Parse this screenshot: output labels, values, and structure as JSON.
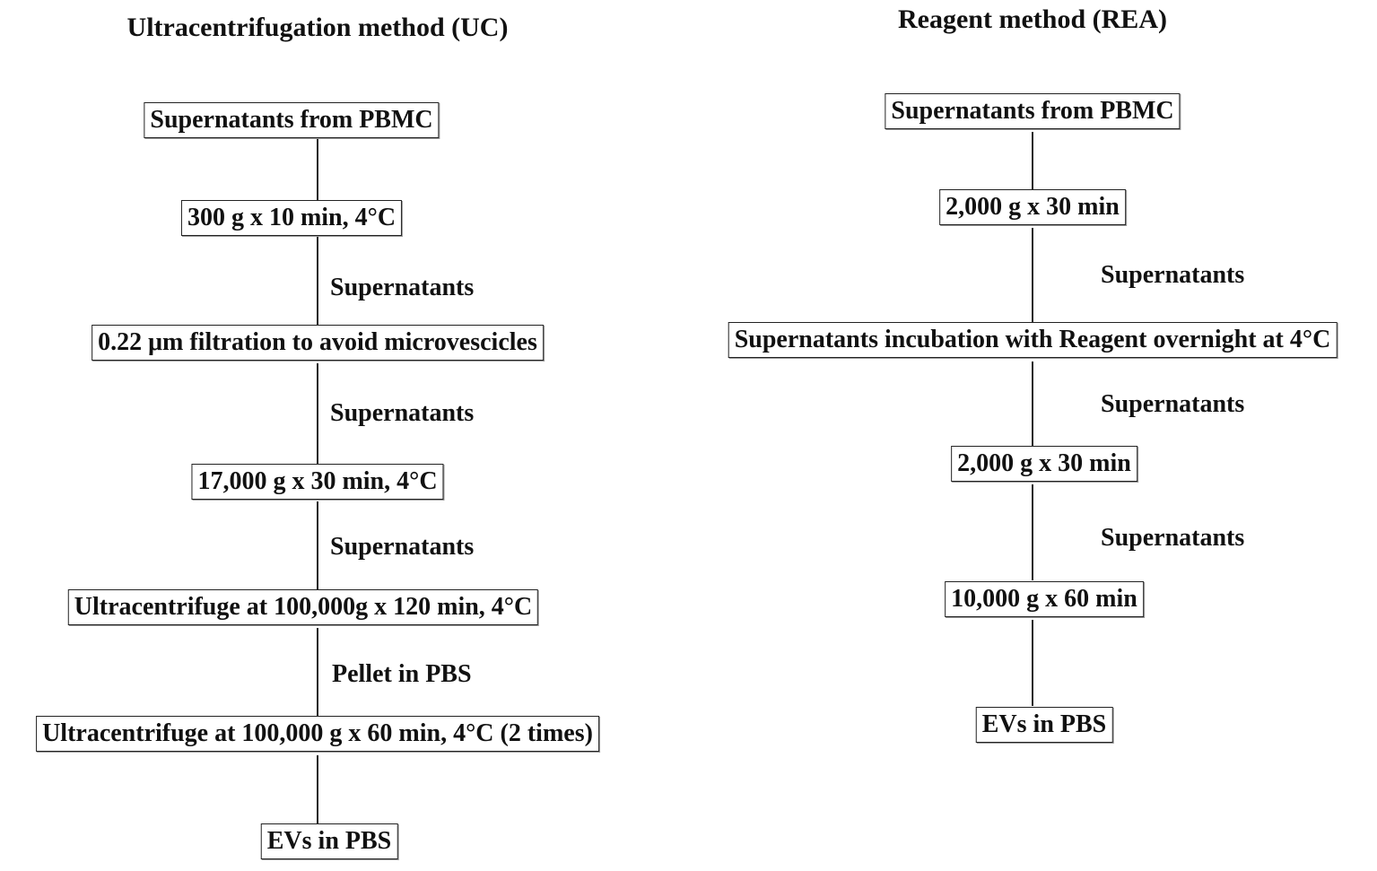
{
  "uc": {
    "title": "Ultracentrifugation method (UC)",
    "steps": [
      "Supernatants from PBMC",
      "300 g x 10 min, 4°C",
      "0.22 μm filtration to avoid microvescicles",
      "17,000 g x 30 min, 4°C",
      "Ultracentrifuge at 100,000g x 120 min, 4°C",
      "Ultracentrifuge at 100,000 g x 60 min, 4°C (2 times)",
      "EVs in PBS"
    ],
    "labels": [
      "Supernatants",
      "Supernatants",
      "Supernatants",
      "Pellet in PBS"
    ]
  },
  "rea": {
    "title": "Reagent method (REA)",
    "steps": [
      "Supernatants from PBMC",
      "2,000 g x 30 min",
      "Supernatants incubation with Reagent overnight at 4°C",
      "2,000 g x 30 min",
      "10,000 g x 60 min",
      "EVs in PBS"
    ],
    "labels": [
      "Supernatants",
      "Supernatants",
      "Supernatants"
    ]
  }
}
